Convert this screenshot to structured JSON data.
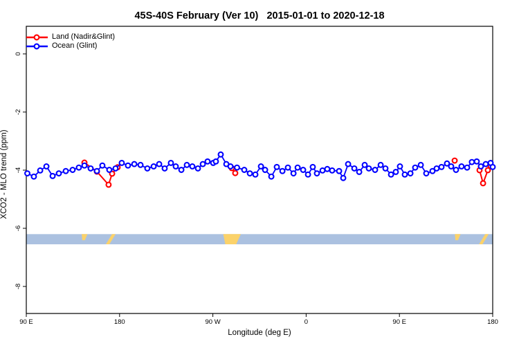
{
  "title": "45S-40S February (Ver 10)   2015-01-01 to 2020-12-18",
  "legend": {
    "items": [
      {
        "label": "Land (Nadir&Glint)",
        "color": "#ff0000"
      },
      {
        "label": "Ocean (Glint)",
        "color": "#0000ff"
      }
    ]
  },
  "axes": {
    "x": {
      "label": "Longitude (deg E)",
      "ticks": [
        {
          "value": 90,
          "label": "90 E"
        },
        {
          "value": 180,
          "label": "180"
        },
        {
          "value": 270,
          "label": "90 W"
        },
        {
          "value": 360,
          "label": "0"
        },
        {
          "value": 450,
          "label": "90 E"
        },
        {
          "value": 540,
          "label": "180"
        }
      ]
    },
    "y": {
      "label": "XCO2 - MLO trend (ppm)",
      "ticks": [
        {
          "value": 0,
          "label": "0"
        },
        {
          "value": -2,
          "label": "-2"
        },
        {
          "value": -4,
          "label": "-4"
        },
        {
          "value": -6,
          "label": "-6"
        },
        {
          "value": -8,
          "label": "-8"
        }
      ]
    }
  },
  "chart_data": {
    "type": "line",
    "xlim": [
      90,
      540
    ],
    "ylim": [
      -8.93,
      0.95
    ],
    "grid": false,
    "legend_position": "topleft",
    "series": [
      {
        "name": "Land (Nadir&Glint)",
        "color": "#ff0000",
        "marker": "open-circle",
        "clusters": [
          [
            [
              146.1,
              -3.74
            ],
            [
              158.1,
              -4.05
            ],
            [
              169.4,
              -4.5
            ],
            [
              172.8,
              -4.12
            ],
            [
              178.1,
              -3.9
            ]
          ],
          [
            [
              288.3,
              -3.93
            ],
            [
              291.6,
              -4.1
            ]
          ],
          [
            [
              503.3,
              -3.67
            ]
          ],
          [
            [
              527.3,
              -4.0
            ],
            [
              530.7,
              -4.45
            ],
            [
              535.3,
              -4.0
            ],
            [
              538.0,
              -3.86
            ]
          ]
        ]
      },
      {
        "name": "Ocean (Glint)",
        "color": "#0000ff",
        "marker": "open-circle",
        "points": [
          [
            91.0,
            -4.11
          ],
          [
            97.3,
            -4.22
          ],
          [
            103.4,
            -4.01
          ],
          [
            109.4,
            -3.87
          ],
          [
            115.4,
            -4.2
          ],
          [
            121.4,
            -4.11
          ],
          [
            128.1,
            -4.03
          ],
          [
            134.7,
            -3.99
          ],
          [
            140.7,
            -3.91
          ],
          [
            146.1,
            -3.84
          ],
          [
            152.1,
            -3.94
          ],
          [
            158.1,
            -4.03
          ],
          [
            163.4,
            -3.84
          ],
          [
            170.1,
            -3.99
          ],
          [
            176.1,
            -3.94
          ],
          [
            182.1,
            -3.75
          ],
          [
            188.1,
            -3.84
          ],
          [
            194.2,
            -3.79
          ],
          [
            200.2,
            -3.82
          ],
          [
            206.8,
            -3.94
          ],
          [
            212.9,
            -3.87
          ],
          [
            218.2,
            -3.79
          ],
          [
            223.5,
            -3.94
          ],
          [
            229.5,
            -3.75
          ],
          [
            234.2,
            -3.87
          ],
          [
            239.6,
            -3.99
          ],
          [
            244.9,
            -3.82
          ],
          [
            250.2,
            -3.87
          ],
          [
            255.6,
            -3.94
          ],
          [
            260.3,
            -3.79
          ],
          [
            264.9,
            -3.7
          ],
          [
            270.3,
            -3.75
          ],
          [
            272.9,
            -3.7
          ],
          [
            277.6,
            -3.46
          ],
          [
            283.0,
            -3.79
          ],
          [
            287.0,
            -3.87
          ],
          [
            293.3,
            -3.91
          ],
          [
            300.3,
            -3.99
          ],
          [
            305.7,
            -4.11
          ],
          [
            311.0,
            -4.15
          ],
          [
            316.4,
            -3.87
          ],
          [
            320.4,
            -3.99
          ],
          [
            326.4,
            -4.22
          ],
          [
            331.7,
            -3.89
          ],
          [
            337.1,
            -4.03
          ],
          [
            342.4,
            -3.91
          ],
          [
            347.8,
            -4.11
          ],
          [
            351.8,
            -3.91
          ],
          [
            357.1,
            -3.99
          ],
          [
            361.8,
            -4.15
          ],
          [
            366.4,
            -3.89
          ],
          [
            370.4,
            -4.11
          ],
          [
            375.8,
            -4.01
          ],
          [
            380.4,
            -3.96
          ],
          [
            385.1,
            -4.01
          ],
          [
            391.8,
            -4.03
          ],
          [
            395.8,
            -4.27
          ],
          [
            400.5,
            -3.79
          ],
          [
            406.5,
            -3.94
          ],
          [
            411.2,
            -4.06
          ],
          [
            416.5,
            -3.82
          ],
          [
            420.5,
            -3.94
          ],
          [
            426.5,
            -3.99
          ],
          [
            431.9,
            -3.82
          ],
          [
            436.5,
            -3.94
          ],
          [
            441.9,
            -4.15
          ],
          [
            446.5,
            -4.06
          ],
          [
            450.5,
            -3.87
          ],
          [
            455.2,
            -4.15
          ],
          [
            460.6,
            -4.11
          ],
          [
            465.2,
            -3.91
          ],
          [
            470.6,
            -3.82
          ],
          [
            475.9,
            -4.11
          ],
          [
            481.9,
            -4.03
          ],
          [
            485.9,
            -3.94
          ],
          [
            490.6,
            -3.89
          ],
          [
            495.9,
            -3.77
          ],
          [
            499.9,
            -3.87
          ],
          [
            504.6,
            -3.99
          ],
          [
            509.9,
            -3.87
          ],
          [
            515.3,
            -3.91
          ],
          [
            519.9,
            -3.72
          ],
          [
            524.6,
            -3.7
          ],
          [
            528.6,
            -3.87
          ],
          [
            533.3,
            -3.79
          ],
          [
            538.0,
            -3.75
          ],
          [
            540.0,
            -3.89
          ]
        ]
      }
    ],
    "map_band": {
      "description": "latitude-band land/ocean strip",
      "ocean_color": "#abc1e0",
      "land_color": "#fbd26a",
      "top_value": -6.2,
      "bottom_value": -6.55,
      "land_polygons": [
        {
          "name": "tasmania-left",
          "points": [
            [
              143.5,
              0
            ],
            [
              149.0,
              0
            ],
            [
              146.5,
              0.6
            ],
            [
              144.0,
              0.6
            ]
          ]
        },
        {
          "name": "new-zealand-left",
          "points": [
            [
              172.8,
              0
            ],
            [
              176.1,
              0
            ],
            [
              170.1,
              1
            ],
            [
              166.8,
              1
            ]
          ]
        },
        {
          "name": "south-america",
          "points": [
            [
              280.0,
              0
            ],
            [
              297.0,
              0
            ],
            [
              292.5,
              1
            ],
            [
              282.0,
              1
            ]
          ]
        },
        {
          "name": "tasmania-right",
          "points": [
            [
              503.5,
              0
            ],
            [
              509.0,
              0
            ],
            [
              506.5,
              0.6
            ],
            [
              504.0,
              0.6
            ]
          ]
        },
        {
          "name": "new-zealand-right",
          "points": [
            [
              532.8,
              0
            ],
            [
              536.1,
              0
            ],
            [
              530.1,
              1
            ],
            [
              526.8,
              1
            ]
          ]
        }
      ]
    }
  }
}
